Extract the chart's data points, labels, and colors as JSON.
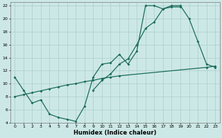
{
  "xlabel": "Humidex (Indice chaleur)",
  "bg_color": "#cce8e6",
  "grid_color": "#aaccca",
  "line_color": "#1a6b5a",
  "xlim": [
    -0.5,
    23.5
  ],
  "ylim": [
    4,
    22.5
  ],
  "yticks": [
    4,
    6,
    8,
    10,
    12,
    14,
    16,
    18,
    20,
    22
  ],
  "xticks": [
    0,
    1,
    2,
    3,
    4,
    5,
    6,
    7,
    8,
    9,
    10,
    11,
    12,
    13,
    14,
    15,
    16,
    17,
    18,
    19,
    20,
    21,
    22,
    23
  ],
  "line_wavy": {
    "x": [
      0,
      1,
      2,
      3,
      4,
      5,
      6,
      7,
      8,
      9,
      10,
      11,
      12,
      13,
      14,
      15,
      16,
      17,
      18,
      19,
      20,
      21,
      22,
      23
    ],
    "y": [
      11,
      9,
      7,
      7.5,
      5.3,
      4.8,
      4.5,
      4.2,
      6.5,
      11,
      13,
      13.2,
      14.5,
      13,
      15,
      22,
      22,
      21.5,
      22,
      22,
      20,
      16.5,
      13,
      12.5
    ]
  },
  "line_smooth": {
    "x": [
      9,
      10,
      11,
      12,
      13,
      14,
      15,
      16,
      17,
      18,
      19
    ],
    "y": [
      9,
      10.5,
      11.5,
      13,
      13.8,
      16,
      18.5,
      19.5,
      21.5,
      21.8,
      21.8
    ]
  },
  "line_linear": {
    "x": [
      0,
      1,
      2,
      3,
      4,
      5,
      6,
      7,
      8,
      9,
      10,
      11,
      12,
      22,
      23
    ],
    "y": [
      8,
      8.3,
      8.6,
      8.9,
      9.2,
      9.5,
      9.8,
      10.0,
      10.3,
      10.5,
      10.8,
      11.0,
      11.2,
      12.5,
      12.7
    ]
  }
}
